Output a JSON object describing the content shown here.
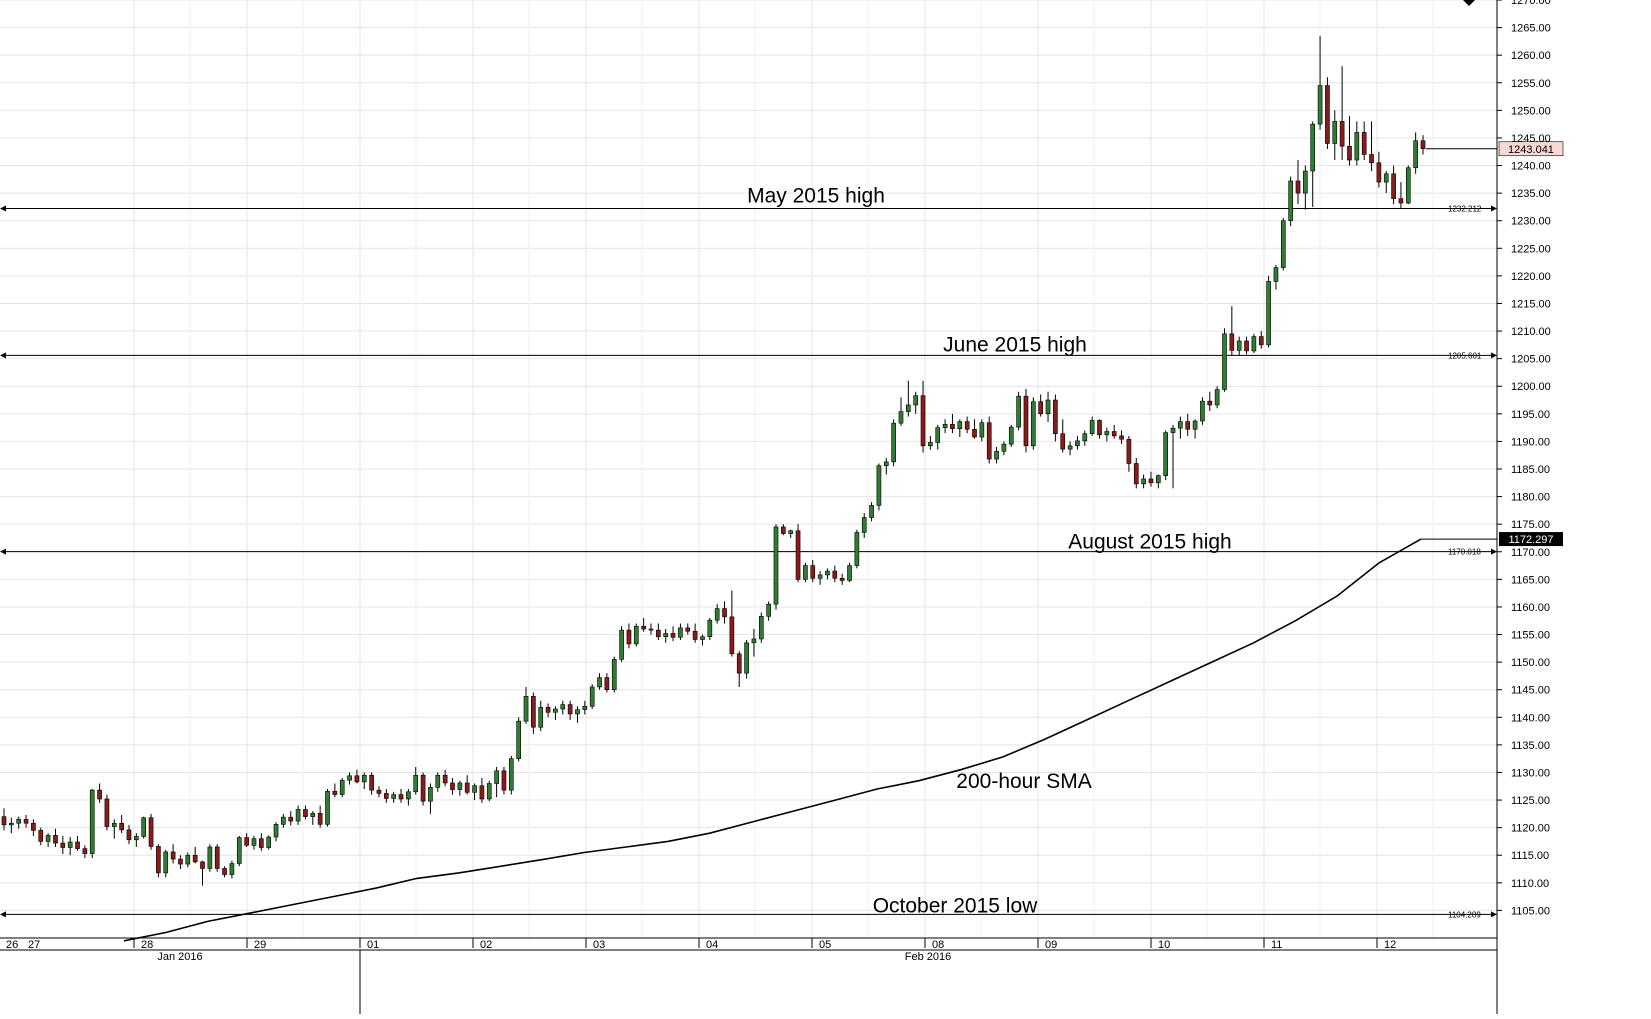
{
  "chart_data": {
    "type": "candlestick",
    "title": "",
    "xlabel": "",
    "ylabel": "",
    "ylim": [
      1100,
      1270
    ],
    "y_ticks": [
      "1105.00",
      "1110.00",
      "1115.00",
      "1120.00",
      "1125.00",
      "1130.00",
      "1135.00",
      "1140.00",
      "1145.00",
      "1150.00",
      "1155.00",
      "1160.00",
      "1165.00",
      "1170.00",
      "1175.00",
      "1180.00",
      "1185.00",
      "1190.00",
      "1195.00",
      "1200.00",
      "1205.00",
      "1210.00",
      "1215.00",
      "1220.00",
      "1225.00",
      "1230.00",
      "1235.00",
      "1240.00",
      "1245.00",
      "1250.00",
      "1255.00",
      "1260.00",
      "1265.00",
      "1270.00"
    ],
    "y_tick_values": [
      1105,
      1110,
      1115,
      1120,
      1125,
      1130,
      1135,
      1140,
      1145,
      1150,
      1155,
      1160,
      1165,
      1170,
      1175,
      1180,
      1185,
      1190,
      1195,
      1200,
      1205,
      1210,
      1215,
      1220,
      1225,
      1230,
      1235,
      1240,
      1245,
      1250,
      1255,
      1260,
      1265,
      1270
    ],
    "day_labels": [
      "26",
      "27",
      "28",
      "29",
      "01",
      "02",
      "03",
      "04",
      "05",
      "08",
      "09",
      "10",
      "11",
      "12"
    ],
    "month_labels": [
      "Jan 2016",
      "Feb 2016"
    ],
    "grid": true,
    "legend": "none",
    "colors": {
      "bull": "#2e7d32",
      "bear": "#8b1a1a",
      "line": "#000000",
      "grid": "#e4e4e4",
      "price_box": "#f7d9d4",
      "sma_box": "#000000"
    },
    "levels": [
      {
        "label": "May 2015 high",
        "value": 1232.212,
        "value_label": "1232.212"
      },
      {
        "label": "June 2015 high",
        "value": 1205.601,
        "value_label": "1205.601"
      },
      {
        "label": "August 2015 high",
        "value": 1170.018,
        "value_label": "1170.018"
      },
      {
        "label": "October 2015 low",
        "value": 1104.289,
        "value_label": "1104.289"
      }
    ],
    "sma": {
      "label": "200-hour SMA",
      "last_value": "1172.297",
      "values": [
        1099.5,
        1101,
        1103,
        1104.5,
        1106,
        1107.5,
        1109,
        1110.8,
        1111.8,
        1113,
        1114.2,
        1115.5,
        1116.5,
        1117.5,
        1119,
        1121,
        1123,
        1125,
        1127,
        1128.5,
        1130.5,
        1132.8,
        1136,
        1139.5,
        1143,
        1146.5,
        1150,
        1153.5,
        1157.5,
        1162,
        1168,
        1172.3
      ]
    },
    "last_price": "1243.041",
    "candles": [
      [
        1122,
        1123.5,
        1119.5,
        1120.5
      ],
      [
        1120.5,
        1121.8,
        1119,
        1120.8
      ],
      [
        1120.8,
        1122,
        1119.8,
        1121.5
      ],
      [
        1121.5,
        1122.3,
        1120,
        1120.8
      ],
      [
        1120.8,
        1121.5,
        1118.5,
        1119.5
      ],
      [
        1119.5,
        1120,
        1116.8,
        1117.5
      ],
      [
        1117.5,
        1119,
        1116.5,
        1118.6
      ],
      [
        1118.6,
        1119.8,
        1116.5,
        1117.2
      ],
      [
        1117.2,
        1118.5,
        1115.2,
        1116.4
      ],
      [
        1116.4,
        1118.3,
        1115,
        1117.4
      ],
      [
        1117.4,
        1118.5,
        1115.8,
        1116.2
      ],
      [
        1116.2,
        1116.8,
        1114.5,
        1115.3
      ],
      [
        1115.3,
        1127,
        1114.5,
        1126.8
      ],
      [
        1126.8,
        1128,
        1124.5,
        1125.2
      ],
      [
        1125.2,
        1126,
        1119.5,
        1120.2
      ],
      [
        1120.2,
        1121.5,
        1118,
        1120.8
      ],
      [
        1120.8,
        1122.3,
        1119,
        1119.6
      ],
      [
        1119.6,
        1120.5,
        1117,
        1117.8
      ],
      [
        1117.8,
        1119,
        1116.5,
        1118.4
      ],
      [
        1118.4,
        1122,
        1118,
        1121.8
      ],
      [
        1121.8,
        1122.5,
        1116,
        1116.6
      ],
      [
        1116.6,
        1117,
        1111,
        1111.8
      ],
      [
        1111.8,
        1116,
        1111,
        1115.6
      ],
      [
        1115.6,
        1117,
        1113.5,
        1114.3
      ],
      [
        1114.3,
        1115,
        1112.5,
        1113.4
      ],
      [
        1113.4,
        1115.5,
        1112.8,
        1115
      ],
      [
        1115,
        1116.5,
        1113.5,
        1113.8
      ],
      [
        1113.8,
        1114,
        1109.5,
        1112.6
      ],
      [
        1112.6,
        1117,
        1112,
        1116.5
      ],
      [
        1116.5,
        1117,
        1112,
        1112.6
      ],
      [
        1112.6,
        1113,
        1111,
        1111.5
      ],
      [
        1111.5,
        1114,
        1110.8,
        1113.5
      ],
      [
        1113.5,
        1118.5,
        1113,
        1118.2
      ],
      [
        1118.2,
        1119,
        1116.5,
        1116.8
      ],
      [
        1116.8,
        1118.5,
        1116,
        1118
      ],
      [
        1118,
        1119,
        1115.8,
        1116.4
      ],
      [
        1116.4,
        1118.6,
        1116,
        1118.3
      ],
      [
        1118.3,
        1121,
        1117.5,
        1120.6
      ],
      [
        1120.6,
        1122.5,
        1120,
        1121.9
      ],
      [
        1121.9,
        1123,
        1120.4,
        1121.2
      ],
      [
        1121.2,
        1124,
        1120.5,
        1123.3
      ],
      [
        1123.3,
        1124,
        1121.5,
        1122
      ],
      [
        1122,
        1123,
        1120.5,
        1122.6
      ],
      [
        1122.6,
        1124,
        1120,
        1120.6
      ],
      [
        1120.6,
        1127,
        1120.2,
        1126.6
      ],
      [
        1126.6,
        1128,
        1125.5,
        1126
      ],
      [
        1126,
        1129,
        1125.5,
        1128.6
      ],
      [
        1128.6,
        1130,
        1127.8,
        1129.4
      ],
      [
        1129.4,
        1130.5,
        1128,
        1128.3
      ],
      [
        1128.3,
        1130,
        1127,
        1129.5
      ],
      [
        1129.5,
        1130,
        1126,
        1126.8
      ],
      [
        1126.8,
        1127.5,
        1125.5,
        1126.2
      ],
      [
        1126.2,
        1127,
        1124.5,
        1125.3
      ],
      [
        1125.3,
        1126.5,
        1124.5,
        1126
      ],
      [
        1126,
        1127,
        1124.5,
        1125.2
      ],
      [
        1125.2,
        1127,
        1124,
        1126.5
      ],
      [
        1126.5,
        1131,
        1126,
        1129.5
      ],
      [
        1129.5,
        1130,
        1124,
        1124.8
      ],
      [
        1124.8,
        1128,
        1122.5,
        1127.3
      ],
      [
        1127.3,
        1130,
        1126.5,
        1129.5
      ],
      [
        1129.5,
        1130.5,
        1127.5,
        1128.1
      ],
      [
        1128.1,
        1129,
        1126,
        1126.9
      ],
      [
        1126.9,
        1128.5,
        1125.8,
        1128.1
      ],
      [
        1128.1,
        1129.5,
        1126,
        1126.4
      ],
      [
        1126.4,
        1128,
        1125,
        1127.6
      ],
      [
        1127.6,
        1129,
        1124.5,
        1125.2
      ],
      [
        1125.2,
        1128.5,
        1124.8,
        1128
      ],
      [
        1128,
        1131,
        1125.5,
        1130.3
      ],
      [
        1130.3,
        1131,
        1126,
        1126.8
      ],
      [
        1126.8,
        1133,
        1126,
        1132.5
      ],
      [
        1132.5,
        1140,
        1132,
        1139.3
      ],
      [
        1139.3,
        1145.5,
        1138.8,
        1143.8
      ],
      [
        1143.8,
        1144.5,
        1137,
        1138.2
      ],
      [
        1138.2,
        1143,
        1137.5,
        1141.8
      ],
      [
        1141.8,
        1142.5,
        1140,
        1140.9
      ],
      [
        1140.9,
        1142,
        1139.5,
        1141.5
      ],
      [
        1141.5,
        1143,
        1140.5,
        1142.3
      ],
      [
        1142.3,
        1143,
        1139.5,
        1140.6
      ],
      [
        1140.6,
        1142,
        1139,
        1141.4
      ],
      [
        1141.4,
        1143,
        1140.5,
        1142
      ],
      [
        1142,
        1146,
        1141.5,
        1145.5
      ],
      [
        1145.5,
        1148,
        1145,
        1147.2
      ],
      [
        1147.2,
        1148,
        1144.5,
        1145
      ],
      [
        1145,
        1151,
        1144.5,
        1150.5
      ],
      [
        1150.5,
        1156.5,
        1150,
        1155.8
      ],
      [
        1155.8,
        1157,
        1152.5,
        1153.3
      ],
      [
        1153.3,
        1157,
        1152.8,
        1156.5
      ],
      [
        1156.5,
        1158,
        1155.5,
        1156
      ],
      [
        1156,
        1157,
        1155,
        1155.8
      ],
      [
        1155.8,
        1157,
        1154,
        1154.6
      ],
      [
        1154.6,
        1156,
        1153.5,
        1155.2
      ],
      [
        1155.2,
        1156.5,
        1153.8,
        1154.5
      ],
      [
        1154.5,
        1157,
        1154,
        1156.2
      ],
      [
        1156.2,
        1157,
        1155,
        1155.6
      ],
      [
        1155.6,
        1157,
        1153.5,
        1154.1
      ],
      [
        1154.1,
        1155,
        1153,
        1154.6
      ],
      [
        1154.6,
        1158,
        1154,
        1157.6
      ],
      [
        1157.6,
        1160.5,
        1157,
        1159.7
      ],
      [
        1159.7,
        1161,
        1157,
        1158.2
      ],
      [
        1158.2,
        1163,
        1151,
        1151.5
      ],
      [
        1151.5,
        1152,
        1145.5,
        1148
      ],
      [
        1148,
        1154,
        1147,
        1153.5
      ],
      [
        1153.5,
        1156,
        1151,
        1154.2
      ],
      [
        1154.2,
        1159,
        1153.5,
        1158.3
      ],
      [
        1158.3,
        1161,
        1157.5,
        1160.5
      ],
      [
        1160.5,
        1175,
        1159.5,
        1174.5
      ],
      [
        1174.5,
        1175,
        1173,
        1173.3
      ],
      [
        1173.3,
        1174,
        1172.5,
        1173.8
      ],
      [
        1173.8,
        1175,
        1164.5,
        1165
      ],
      [
        1165,
        1168,
        1164.5,
        1167.5
      ],
      [
        1167.5,
        1168.5,
        1164.5,
        1165.2
      ],
      [
        1165.2,
        1166.5,
        1164,
        1165.8
      ],
      [
        1165.8,
        1167,
        1165,
        1166.5
      ],
      [
        1166.5,
        1167.5,
        1164.5,
        1165.2
      ],
      [
        1165.2,
        1166,
        1164,
        1164.8
      ],
      [
        1164.8,
        1168,
        1164.5,
        1167.5
      ],
      [
        1167.5,
        1174,
        1167,
        1173.5
      ],
      [
        1173.5,
        1177,
        1172.5,
        1176.2
      ],
      [
        1176.2,
        1179,
        1175.5,
        1178.4
      ],
      [
        1178.4,
        1186,
        1177.5,
        1185.6
      ],
      [
        1185.6,
        1187,
        1184,
        1186.3
      ],
      [
        1186.3,
        1194,
        1185.5,
        1193.3
      ],
      [
        1193.3,
        1198,
        1192.8,
        1195.4
      ],
      [
        1195.4,
        1201,
        1194.5,
        1196.6
      ],
      [
        1196.6,
        1199,
        1195,
        1198.3
      ],
      [
        1198.3,
        1201,
        1188,
        1189.2
      ],
      [
        1189.2,
        1191,
        1188.5,
        1189.8
      ],
      [
        1189.8,
        1193,
        1188.5,
        1192.5
      ],
      [
        1192.5,
        1194,
        1191.5,
        1193.1
      ],
      [
        1193.1,
        1195,
        1191.5,
        1192.3
      ],
      [
        1192.3,
        1194,
        1190.8,
        1193.6
      ],
      [
        1193.6,
        1194.5,
        1191.5,
        1192.2
      ],
      [
        1192.2,
        1194,
        1190.5,
        1190.8
      ],
      [
        1190.8,
        1194,
        1190,
        1193.4
      ],
      [
        1193.4,
        1194.5,
        1186,
        1186.8
      ],
      [
        1186.8,
        1189,
        1186,
        1188.2
      ],
      [
        1188.2,
        1190,
        1187.5,
        1189.5
      ],
      [
        1189.5,
        1193,
        1189,
        1192.6
      ],
      [
        1192.6,
        1199,
        1192,
        1198.2
      ],
      [
        1198.2,
        1199.5,
        1188,
        1189.2
      ],
      [
        1189.2,
        1198,
        1188.5,
        1197.2
      ],
      [
        1197.2,
        1198.5,
        1194.5,
        1195
      ],
      [
        1195,
        1199,
        1193.5,
        1197.5
      ],
      [
        1197.5,
        1198.5,
        1190,
        1191.4
      ],
      [
        1191.4,
        1194,
        1188,
        1188.6
      ],
      [
        1188.6,
        1190,
        1187.5,
        1189.2
      ],
      [
        1189.2,
        1191,
        1188.5,
        1190.1
      ],
      [
        1190.1,
        1192,
        1189.2,
        1191.4
      ],
      [
        1191.4,
        1194.5,
        1191,
        1193.8
      ],
      [
        1193.8,
        1194,
        1190.5,
        1191.2
      ],
      [
        1191.2,
        1192.5,
        1190,
        1191.8
      ],
      [
        1191.8,
        1193,
        1190.5,
        1191
      ],
      [
        1191,
        1192,
        1189.5,
        1190.4
      ],
      [
        1190.4,
        1191,
        1184.5,
        1186
      ],
      [
        1186,
        1187,
        1181.5,
        1182.3
      ],
      [
        1182.3,
        1184,
        1181.5,
        1183.2
      ],
      [
        1183.2,
        1184.5,
        1181.8,
        1182.5
      ],
      [
        1182.5,
        1184,
        1181.5,
        1183.8
      ],
      [
        1183.8,
        1192,
        1183,
        1191.6
      ],
      [
        1191.6,
        1193,
        1181.5,
        1192.4
      ],
      [
        1192.4,
        1194.5,
        1190.5,
        1193.6
      ],
      [
        1193.6,
        1195,
        1191,
        1192.2
      ],
      [
        1192.2,
        1194,
        1190.5,
        1193.7
      ],
      [
        1193.7,
        1198,
        1193,
        1197.3
      ],
      [
        1197.3,
        1199,
        1195.5,
        1196.6
      ],
      [
        1196.6,
        1200,
        1196,
        1199.4
      ],
      [
        1199.4,
        1210.5,
        1199,
        1209.5
      ],
      [
        1209.5,
        1214.5,
        1205.5,
        1206.5
      ],
      [
        1206.5,
        1209,
        1205.5,
        1208.2
      ],
      [
        1208.2,
        1209,
        1205.8,
        1206.4
      ],
      [
        1206.4,
        1209.5,
        1206,
        1209
      ],
      [
        1209,
        1210,
        1206.8,
        1207.5
      ],
      [
        1207.5,
        1220,
        1207,
        1219
      ],
      [
        1219,
        1222,
        1217.5,
        1221.5
      ],
      [
        1221.5,
        1230.5,
        1221,
        1230
      ],
      [
        1230,
        1238,
        1229,
        1237.2
      ],
      [
        1237.2,
        1241,
        1233,
        1235
      ],
      [
        1235,
        1240,
        1232,
        1239
      ],
      [
        1239,
        1248,
        1232.5,
        1247.5
      ],
      [
        1247.5,
        1263.5,
        1246.5,
        1254.5
      ],
      [
        1254.5,
        1256,
        1243,
        1244
      ],
      [
        1244,
        1250,
        1241,
        1248
      ],
      [
        1248,
        1258,
        1241,
        1243.5
      ],
      [
        1243.5,
        1249,
        1240,
        1241
      ],
      [
        1241,
        1248,
        1240,
        1246
      ],
      [
        1246,
        1248,
        1241,
        1242
      ],
      [
        1242,
        1248,
        1239,
        1240.5
      ],
      [
        1240.5,
        1242.5,
        1236,
        1237
      ],
      [
        1237,
        1239,
        1235,
        1238.5
      ],
      [
        1238.5,
        1240,
        1233,
        1234
      ],
      [
        1234,
        1237,
        1232.2,
        1233.2
      ],
      [
        1233.2,
        1240,
        1233,
        1239.6
      ],
      [
        1239.6,
        1246,
        1238.5,
        1244.5
      ],
      [
        1244.5,
        1245.5,
        1242,
        1243.041
      ]
    ]
  }
}
